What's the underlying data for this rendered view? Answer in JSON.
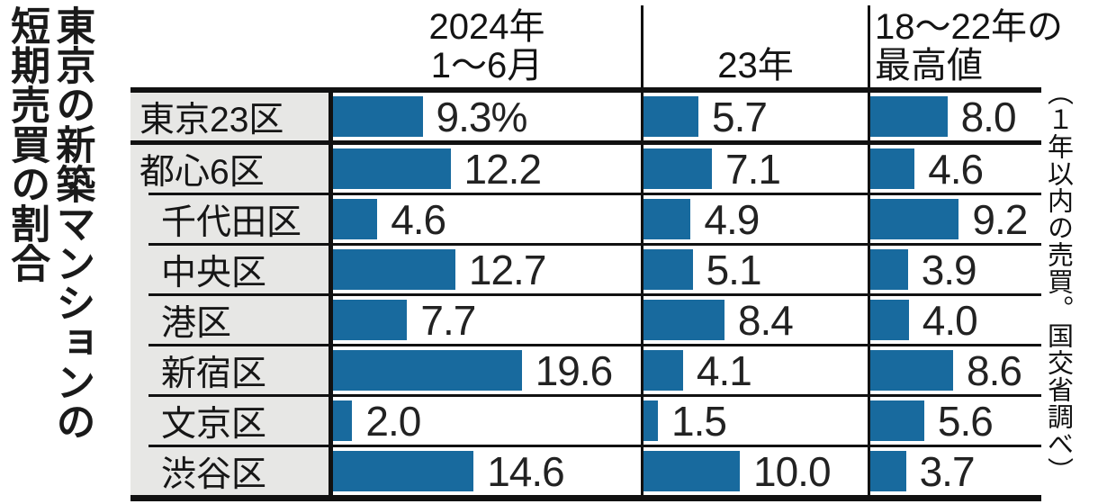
{
  "title": "東京の新築マンションの短期売買の割合",
  "title_lines": [
    "東京の新築マンションの",
    "短期売買の割合"
  ],
  "source_note": "（１年以内の売買。国交省調べ）",
  "columns": [
    {
      "label_lines": [
        "2024年",
        "1〜6月"
      ]
    },
    {
      "label_lines": [
        "23年"
      ]
    },
    {
      "label_lines": [
        "18〜22年の",
        "最高値"
      ]
    }
  ],
  "chart_data": {
    "type": "bar",
    "title": "東京の新築マンションの短期売買の割合",
    "unit": "%",
    "value_suffix_first_cell": "%",
    "bar_color": "#186a9e",
    "categories": [
      "東京23区",
      "都心6区",
      "千代田区",
      "中央区",
      "港区",
      "新宿区",
      "文京区",
      "渋谷区"
    ],
    "indented": [
      false,
      false,
      true,
      true,
      true,
      true,
      true,
      true
    ],
    "series": [
      {
        "name": "2024年1〜6月",
        "values": [
          9.3,
          12.2,
          4.6,
          12.7,
          7.7,
          19.6,
          2.0,
          14.6
        ]
      },
      {
        "name": "23年",
        "values": [
          5.7,
          7.1,
          4.9,
          5.1,
          8.4,
          4.1,
          1.5,
          10.0
        ]
      },
      {
        "name": "18〜22年の最高値",
        "values": [
          8.0,
          4.6,
          9.2,
          3.9,
          4.0,
          8.6,
          5.6,
          3.7
        ]
      }
    ],
    "layout_hints": {
      "orientation": "horizontal",
      "value_labels": "right-of-bar",
      "grid": "off",
      "legend": "column-headers"
    }
  }
}
